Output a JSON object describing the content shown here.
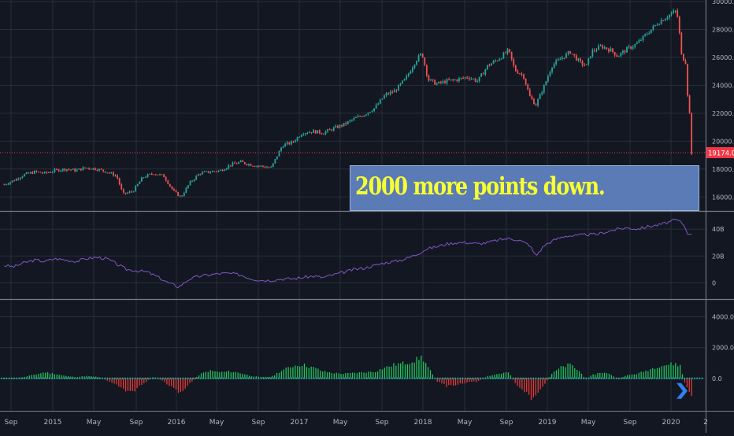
{
  "chart_data": {
    "type": "candlestick",
    "x_labels": [
      "Sep",
      "2015",
      "May",
      "Sep",
      "2016",
      "May",
      "Sep",
      "2017",
      "May",
      "Sep",
      "2018",
      "May",
      "Sep",
      "2019",
      "May",
      "Sep",
      "2020",
      "2"
    ],
    "price_axis": {
      "ticks": [
        "30000.0",
        "28000.0",
        "26000.0",
        "24000.0",
        "22000.0",
        "20000.0",
        "18000.0",
        "16000.0"
      ],
      "range": [
        15000,
        30000
      ]
    },
    "price_series": [
      [
        2014.67,
        16900
      ],
      [
        2014.75,
        17200
      ],
      [
        2014.83,
        17600
      ],
      [
        2014.92,
        17800
      ],
      [
        2015.0,
        17700
      ],
      [
        2015.08,
        17900
      ],
      [
        2015.17,
        18000
      ],
      [
        2015.25,
        17900
      ],
      [
        2015.33,
        18100
      ],
      [
        2015.42,
        18000
      ],
      [
        2015.5,
        17800
      ],
      [
        2015.58,
        17500
      ],
      [
        2015.63,
        16200
      ],
      [
        2015.71,
        16400
      ],
      [
        2015.79,
        17400
      ],
      [
        2015.88,
        17700
      ],
      [
        2015.96,
        17500
      ],
      [
        2016.04,
        16400
      ],
      [
        2016.1,
        16000
      ],
      [
        2016.17,
        17000
      ],
      [
        2016.25,
        17700
      ],
      [
        2016.33,
        17800
      ],
      [
        2016.42,
        17900
      ],
      [
        2016.5,
        18300
      ],
      [
        2016.58,
        18500
      ],
      [
        2016.67,
        18300
      ],
      [
        2016.75,
        18200
      ],
      [
        2016.83,
        18100
      ],
      [
        2016.88,
        19000
      ],
      [
        2016.92,
        19700
      ],
      [
        2017.0,
        19900
      ],
      [
        2017.08,
        20600
      ],
      [
        2017.17,
        20700
      ],
      [
        2017.25,
        20600
      ],
      [
        2017.33,
        20900
      ],
      [
        2017.42,
        21200
      ],
      [
        2017.5,
        21600
      ],
      [
        2017.58,
        21900
      ],
      [
        2017.67,
        22400
      ],
      [
        2017.75,
        23300
      ],
      [
        2017.83,
        23600
      ],
      [
        2017.92,
        24500
      ],
      [
        2018.0,
        25800
      ],
      [
        2018.05,
        26300
      ],
      [
        2018.1,
        24400
      ],
      [
        2018.17,
        24100
      ],
      [
        2018.25,
        24300
      ],
      [
        2018.33,
        24400
      ],
      [
        2018.42,
        24600
      ],
      [
        2018.5,
        24300
      ],
      [
        2018.58,
        25400
      ],
      [
        2018.67,
        25900
      ],
      [
        2018.75,
        26500
      ],
      [
        2018.8,
        25100
      ],
      [
        2018.87,
        24700
      ],
      [
        2018.92,
        23200
      ],
      [
        2018.97,
        22600
      ],
      [
        2019.04,
        24000
      ],
      [
        2019.1,
        25400
      ],
      [
        2019.17,
        25900
      ],
      [
        2019.25,
        26400
      ],
      [
        2019.33,
        25600
      ],
      [
        2019.38,
        25400
      ],
      [
        2019.42,
        26400
      ],
      [
        2019.5,
        26800
      ],
      [
        2019.58,
        26500
      ],
      [
        2019.63,
        26100
      ],
      [
        2019.71,
        26600
      ],
      [
        2019.79,
        27000
      ],
      [
        2019.88,
        27800
      ],
      [
        2019.96,
        28500
      ],
      [
        2020.04,
        29000
      ],
      [
        2020.1,
        29300
      ],
      [
        2020.12,
        28800
      ],
      [
        2020.15,
        26000
      ],
      [
        2020.18,
        25800
      ],
      [
        2020.2,
        23000
      ],
      [
        2020.22,
        21500
      ],
      [
        2020.23,
        19174
      ]
    ],
    "last_price_label": "19174.0",
    "volume_axis": {
      "ticks": [
        "40B",
        "20B",
        "0"
      ],
      "range": [
        -5,
        50
      ]
    },
    "volume_series": [
      [
        2014.67,
        13
      ],
      [
        2014.75,
        12
      ],
      [
        2014.83,
        15
      ],
      [
        2014.92,
        17
      ],
      [
        2015.0,
        16
      ],
      [
        2015.08,
        18
      ],
      [
        2015.17,
        17
      ],
      [
        2015.25,
        16
      ],
      [
        2015.33,
        18
      ],
      [
        2015.42,
        19
      ],
      [
        2015.5,
        18
      ],
      [
        2015.58,
        14
      ],
      [
        2015.66,
        10
      ],
      [
        2015.75,
        9
      ],
      [
        2015.83,
        8
      ],
      [
        2015.92,
        4
      ],
      [
        2016.0,
        0
      ],
      [
        2016.08,
        -3
      ],
      [
        2016.17,
        3
      ],
      [
        2016.25,
        5
      ],
      [
        2016.33,
        6
      ],
      [
        2016.42,
        7
      ],
      [
        2016.5,
        7
      ],
      [
        2016.58,
        6
      ],
      [
        2016.67,
        3
      ],
      [
        2016.75,
        2
      ],
      [
        2016.83,
        2
      ],
      [
        2016.92,
        3
      ],
      [
        2017.0,
        3
      ],
      [
        2017.08,
        4
      ],
      [
        2017.17,
        5
      ],
      [
        2017.25,
        4
      ],
      [
        2017.33,
        6
      ],
      [
        2017.42,
        8
      ],
      [
        2017.5,
        10
      ],
      [
        2017.58,
        11
      ],
      [
        2017.67,
        13
      ],
      [
        2017.75,
        15
      ],
      [
        2017.83,
        16
      ],
      [
        2017.92,
        18
      ],
      [
        2018.0,
        21
      ],
      [
        2018.08,
        25
      ],
      [
        2018.17,
        27
      ],
      [
        2018.25,
        29
      ],
      [
        2018.33,
        30
      ],
      [
        2018.42,
        30
      ],
      [
        2018.5,
        29
      ],
      [
        2018.58,
        30
      ],
      [
        2018.67,
        32
      ],
      [
        2018.75,
        33
      ],
      [
        2018.83,
        32
      ],
      [
        2018.92,
        28
      ],
      [
        2018.97,
        20
      ],
      [
        2019.04,
        28
      ],
      [
        2019.12,
        32
      ],
      [
        2019.21,
        35
      ],
      [
        2019.29,
        35
      ],
      [
        2019.38,
        36
      ],
      [
        2019.46,
        36
      ],
      [
        2019.54,
        38
      ],
      [
        2019.63,
        40
      ],
      [
        2019.71,
        41
      ],
      [
        2019.79,
        40
      ],
      [
        2019.88,
        42
      ],
      [
        2019.96,
        43
      ],
      [
        2020.04,
        45
      ],
      [
        2020.1,
        47
      ],
      [
        2020.15,
        45
      ],
      [
        2020.18,
        41
      ],
      [
        2020.2,
        37
      ],
      [
        2020.22,
        35
      ],
      [
        2020.23,
        37
      ]
    ],
    "oscillator_axis": {
      "ticks": [
        "4000.0",
        "2000.0",
        "0.0"
      ],
      "range": [
        -1700,
        5000
      ]
    },
    "oscillator_series": [
      [
        2014.67,
        -60
      ],
      [
        2014.75,
        -40
      ],
      [
        2014.83,
        80
      ],
      [
        2014.92,
        250
      ],
      [
        2015.0,
        400
      ],
      [
        2015.08,
        300
      ],
      [
        2015.17,
        150
      ],
      [
        2015.25,
        80
      ],
      [
        2015.33,
        150
      ],
      [
        2015.42,
        100
      ],
      [
        2015.5,
        -120
      ],
      [
        2015.58,
        -400
      ],
      [
        2015.66,
        -900
      ],
      [
        2015.72,
        -800
      ],
      [
        2015.79,
        -350
      ],
      [
        2015.88,
        100
      ],
      [
        2015.96,
        -200
      ],
      [
        2016.04,
        -700
      ],
      [
        2016.1,
        -900
      ],
      [
        2016.17,
        -350
      ],
      [
        2016.25,
        250
      ],
      [
        2016.33,
        500
      ],
      [
        2016.42,
        400
      ],
      [
        2016.5,
        450
      ],
      [
        2016.58,
        350
      ],
      [
        2016.67,
        150
      ],
      [
        2016.75,
        80
      ],
      [
        2016.83,
        100
      ],
      [
        2016.9,
        450
      ],
      [
        2017.0,
        800
      ],
      [
        2017.08,
        900
      ],
      [
        2017.17,
        700
      ],
      [
        2017.25,
        450
      ],
      [
        2017.33,
        350
      ],
      [
        2017.42,
        300
      ],
      [
        2017.5,
        350
      ],
      [
        2017.58,
        400
      ],
      [
        2017.67,
        450
      ],
      [
        2017.75,
        700
      ],
      [
        2017.83,
        900
      ],
      [
        2017.92,
        1000
      ],
      [
        2018.0,
        1200
      ],
      [
        2018.05,
        1400
      ],
      [
        2018.1,
        700
      ],
      [
        2018.17,
        -200
      ],
      [
        2018.25,
        -500
      ],
      [
        2018.33,
        -400
      ],
      [
        2018.42,
        -250
      ],
      [
        2018.5,
        -200
      ],
      [
        2018.58,
        150
      ],
      [
        2018.67,
        300
      ],
      [
        2018.75,
        400
      ],
      [
        2018.8,
        -300
      ],
      [
        2018.87,
        -800
      ],
      [
        2018.92,
        -1200
      ],
      [
        2018.97,
        -1300
      ],
      [
        2019.04,
        -400
      ],
      [
        2019.1,
        300
      ],
      [
        2019.17,
        700
      ],
      [
        2019.25,
        900
      ],
      [
        2019.33,
        400
      ],
      [
        2019.38,
        -100
      ],
      [
        2019.42,
        200
      ],
      [
        2019.5,
        400
      ],
      [
        2019.58,
        250
      ],
      [
        2019.63,
        -50
      ],
      [
        2019.71,
        200
      ],
      [
        2019.79,
        300
      ],
      [
        2019.88,
        550
      ],
      [
        2019.96,
        800
      ],
      [
        2020.04,
        900
      ],
      [
        2020.1,
        950
      ],
      [
        2020.14,
        800
      ],
      [
        2020.17,
        -200
      ],
      [
        2020.2,
        -700
      ],
      [
        2020.23,
        -1300
      ]
    ],
    "annotation": "2000 more points down."
  }
}
